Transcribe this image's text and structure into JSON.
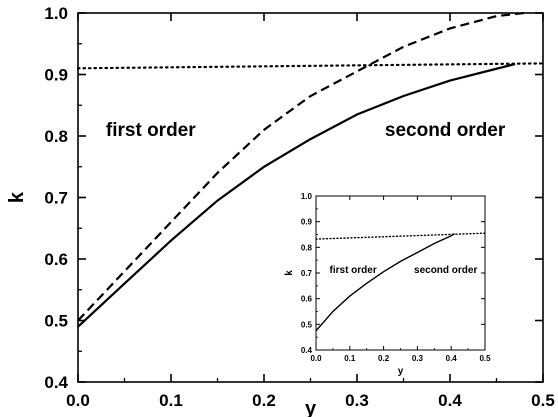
{
  "chart_data": [
    {
      "type": "line",
      "xlabel": "y",
      "ylabel": "k",
      "xlim": [
        0.0,
        0.5
      ],
      "ylim": [
        0.4,
        1.0
      ],
      "x_ticks": [
        "0.0",
        "0.1",
        "0.2",
        "0.3",
        "0.4",
        "0.5"
      ],
      "y_ticks": [
        "0.4",
        "0.5",
        "0.6",
        "0.7",
        "0.8",
        "0.9",
        "1.0"
      ],
      "grid": false,
      "series": [
        {
          "style": "solid",
          "x": [
            0.0,
            0.05,
            0.1,
            0.15,
            0.2,
            0.25,
            0.3,
            0.35,
            0.4,
            0.47
          ],
          "y": [
            0.49,
            0.56,
            0.63,
            0.695,
            0.75,
            0.795,
            0.835,
            0.865,
            0.89,
            0.917
          ]
        },
        {
          "style": "dashed",
          "x": [
            0.0,
            0.05,
            0.1,
            0.15,
            0.2,
            0.25,
            0.3,
            0.35,
            0.4,
            0.45,
            0.48
          ],
          "y": [
            0.5,
            0.58,
            0.66,
            0.74,
            0.81,
            0.865,
            0.905,
            0.945,
            0.975,
            0.995,
            1.0
          ]
        },
        {
          "style": "dotted",
          "x": [
            0.0,
            0.5
          ],
          "y": [
            0.91,
            0.918
          ]
        }
      ],
      "annotations": [
        {
          "text": "first order",
          "x": 0.03,
          "y": 0.8
        },
        {
          "text": "second order",
          "x": 0.33,
          "y": 0.8
        }
      ]
    },
    {
      "type": "line",
      "role": "inset",
      "xlabel": "y",
      "ylabel": "k",
      "xlim": [
        0.0,
        0.5
      ],
      "ylim": [
        0.4,
        1.0
      ],
      "x_ticks": [
        "0.0",
        "0.1",
        "0.2",
        "0.3",
        "0.4",
        "0.5"
      ],
      "y_ticks": [
        "0.4",
        "0.5",
        "0.6",
        "0.7",
        "0.8",
        "0.9",
        "1.0"
      ],
      "grid": false,
      "series": [
        {
          "style": "solid",
          "x": [
            0.0,
            0.05,
            0.1,
            0.15,
            0.2,
            0.25,
            0.3,
            0.35,
            0.4,
            0.41
          ],
          "y": [
            0.475,
            0.55,
            0.61,
            0.66,
            0.705,
            0.745,
            0.78,
            0.815,
            0.845,
            0.853
          ]
        },
        {
          "style": "dotted",
          "x": [
            0.0,
            0.5
          ],
          "y": [
            0.832,
            0.855
          ]
        }
      ],
      "annotations": [
        {
          "text": "first order",
          "x": 0.04,
          "y": 0.7
        },
        {
          "text": "second order",
          "x": 0.29,
          "y": 0.7
        }
      ]
    }
  ]
}
